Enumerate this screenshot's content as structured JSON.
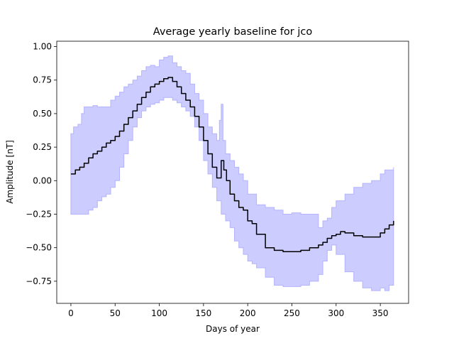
{
  "chart_data": {
    "type": "area",
    "title": "Average yearly baseline for jco",
    "xlabel": "Days of year",
    "ylabel": "Amplitude [nT]",
    "xlim": [
      -16,
      382
    ],
    "ylim": [
      -0.915,
      1.04
    ],
    "xticks": [
      0,
      50,
      100,
      150,
      200,
      250,
      300,
      350
    ],
    "yticks": [
      -0.75,
      -0.5,
      -0.25,
      0.0,
      0.25,
      0.5,
      0.75,
      1.0
    ],
    "ytick_labels": [
      "−0.75",
      "−0.50",
      "−0.25",
      "0.00",
      "0.25",
      "0.50",
      "0.75",
      "1.00"
    ],
    "grid": false,
    "colors": {
      "band_fill": "#ccccff",
      "band_edge": "#b3b3ff",
      "mean_line": "#000000"
    },
    "series": [
      {
        "role": "mean",
        "x": [
          0,
          5,
          10,
          15,
          20,
          25,
          30,
          35,
          40,
          45,
          50,
          55,
          60,
          65,
          70,
          75,
          80,
          85,
          90,
          95,
          100,
          105,
          110,
          115,
          120,
          125,
          130,
          135,
          140,
          145,
          150,
          155,
          160,
          165,
          170,
          173,
          176,
          180,
          185,
          190,
          195,
          200,
          205,
          210,
          220,
          230,
          240,
          250,
          260,
          270,
          280,
          285,
          290,
          295,
          300,
          305,
          310,
          320,
          330,
          340,
          350,
          355,
          360,
          365
        ],
        "y": [
          0.05,
          0.08,
          0.1,
          0.13,
          0.17,
          0.2,
          0.22,
          0.25,
          0.28,
          0.3,
          0.33,
          0.37,
          0.42,
          0.47,
          0.52,
          0.57,
          0.62,
          0.66,
          0.7,
          0.72,
          0.74,
          0.76,
          0.77,
          0.74,
          0.7,
          0.65,
          0.6,
          0.55,
          0.48,
          0.4,
          0.3,
          0.2,
          0.1,
          0.02,
          0.15,
          0.08,
          0.0,
          -0.1,
          -0.15,
          -0.2,
          -0.22,
          -0.3,
          -0.32,
          -0.4,
          -0.5,
          -0.52,
          -0.53,
          -0.53,
          -0.52,
          -0.5,
          -0.48,
          -0.46,
          -0.43,
          -0.41,
          -0.4,
          -0.38,
          -0.39,
          -0.41,
          -0.42,
          -0.42,
          -0.39,
          -0.36,
          -0.33,
          -0.3
        ]
      },
      {
        "role": "upper",
        "x": [
          0,
          3,
          8,
          12,
          15,
          20,
          25,
          30,
          35,
          40,
          45,
          50,
          55,
          60,
          65,
          70,
          75,
          80,
          85,
          90,
          95,
          100,
          105,
          110,
          115,
          120,
          125,
          130,
          135,
          140,
          145,
          150,
          155,
          160,
          165,
          168,
          170,
          172,
          175,
          180,
          185,
          190,
          195,
          200,
          210,
          220,
          230,
          240,
          250,
          260,
          270,
          280,
          285,
          290,
          295,
          300,
          310,
          320,
          330,
          340,
          350,
          355,
          360,
          365
        ],
        "y": [
          0.35,
          0.4,
          0.42,
          0.5,
          0.55,
          0.55,
          0.56,
          0.55,
          0.55,
          0.55,
          0.6,
          0.63,
          0.66,
          0.7,
          0.72,
          0.75,
          0.78,
          0.82,
          0.85,
          0.86,
          0.85,
          0.9,
          0.92,
          0.93,
          0.88,
          0.85,
          0.82,
          0.8,
          0.72,
          0.65,
          0.6,
          0.5,
          0.4,
          0.35,
          0.3,
          0.45,
          0.57,
          0.3,
          0.2,
          0.15,
          0.1,
          0.05,
          0.0,
          -0.1,
          -0.18,
          -0.2,
          -0.22,
          -0.25,
          -0.24,
          -0.25,
          -0.25,
          -0.35,
          -0.3,
          -0.28,
          -0.2,
          -0.15,
          -0.1,
          -0.05,
          -0.02,
          0.0,
          0.05,
          0.08,
          0.08,
          0.1
        ]
      },
      {
        "role": "lower",
        "x": [
          0,
          5,
          10,
          15,
          20,
          25,
          30,
          35,
          40,
          45,
          50,
          55,
          60,
          65,
          70,
          75,
          80,
          85,
          90,
          95,
          100,
          105,
          110,
          115,
          120,
          125,
          130,
          135,
          140,
          145,
          150,
          155,
          160,
          165,
          170,
          175,
          180,
          185,
          190,
          195,
          200,
          205,
          210,
          220,
          230,
          240,
          250,
          260,
          270,
          280,
          285,
          290,
          295,
          300,
          310,
          320,
          330,
          340,
          350,
          355,
          360,
          365
        ],
        "y": [
          -0.25,
          -0.25,
          -0.25,
          -0.25,
          -0.22,
          -0.2,
          -0.15,
          -0.12,
          -0.1,
          -0.05,
          0.0,
          0.1,
          0.2,
          0.3,
          0.4,
          0.47,
          0.52,
          0.55,
          0.57,
          0.58,
          0.6,
          0.62,
          0.62,
          0.6,
          0.58,
          0.55,
          0.52,
          0.48,
          0.4,
          0.3,
          0.15,
          0.05,
          -0.05,
          -0.15,
          -0.25,
          -0.3,
          -0.35,
          -0.45,
          -0.5,
          -0.55,
          -0.6,
          -0.62,
          -0.65,
          -0.72,
          -0.78,
          -0.79,
          -0.79,
          -0.78,
          -0.75,
          -0.7,
          -0.6,
          -0.52,
          -0.48,
          -0.55,
          -0.68,
          -0.75,
          -0.8,
          -0.82,
          -0.8,
          -0.82,
          -0.78,
          -0.7
        ]
      }
    ]
  }
}
